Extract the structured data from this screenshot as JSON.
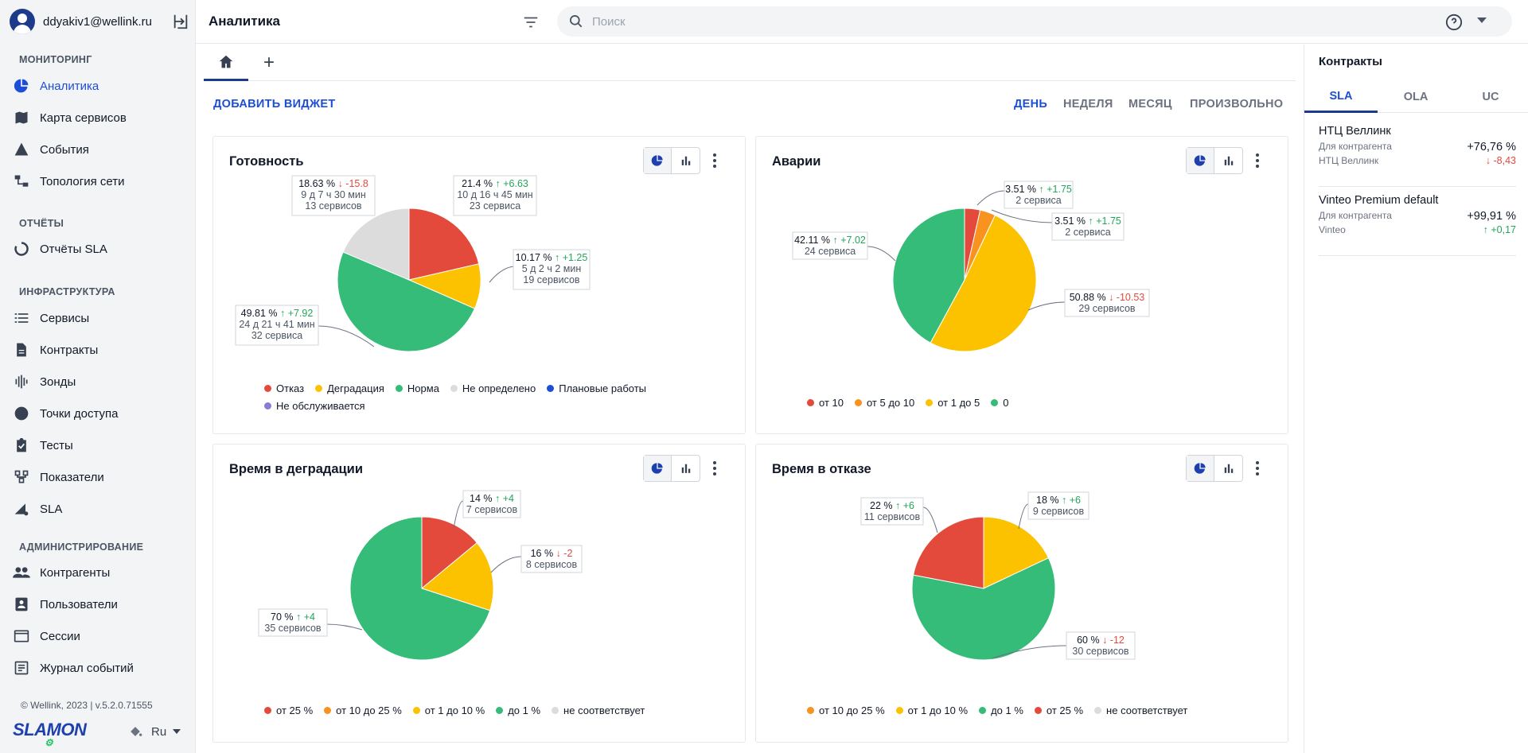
{
  "user": {
    "email": "ddyakiv1@wellink.ru"
  },
  "sidebar": {
    "sections": [
      {
        "title": "МОНИТОРИНГ",
        "items": [
          {
            "label": "Аналитика",
            "icon": "analytics-pie-icon",
            "active": true
          },
          {
            "label": "Карта сервисов",
            "icon": "map-icon"
          },
          {
            "label": "События",
            "icon": "warning-icon"
          },
          {
            "label": "Топология сети",
            "icon": "topology-icon"
          }
        ]
      },
      {
        "title": "ОТЧЁТЫ",
        "items": [
          {
            "label": "Отчёты SLA",
            "icon": "sla-report-icon"
          }
        ]
      },
      {
        "title": "ИНФРАСТРУКТУРА",
        "items": [
          {
            "label": "Сервисы",
            "icon": "list-icon"
          },
          {
            "label": "Контракты",
            "icon": "document-icon"
          },
          {
            "label": "Зонды",
            "icon": "probe-icon"
          },
          {
            "label": "Точки доступа",
            "icon": "circle-icon"
          },
          {
            "label": "Тесты",
            "icon": "clipboard-check-icon"
          },
          {
            "label": "Показатели",
            "icon": "metrics-icon"
          },
          {
            "label": "SLA",
            "icon": "sla-icon"
          }
        ]
      },
      {
        "title": "АДМИНИСТРИРОВАНИЕ",
        "items": [
          {
            "label": "Контрагенты",
            "icon": "people-icon"
          },
          {
            "label": "Пользователи",
            "icon": "user-card-icon"
          },
          {
            "label": "Сессии",
            "icon": "window-icon"
          },
          {
            "label": "Журнал событий",
            "icon": "log-icon"
          }
        ]
      }
    ],
    "footer": "© Wellink, 2023 | v.5.2.0.71555",
    "logo": "SLAMON",
    "language": "Ru"
  },
  "header": {
    "title": "Аналитика",
    "search_placeholder": "Поиск"
  },
  "toolbar": {
    "add_widget": "ДОБАВИТЬ ВИДЖЕТ",
    "periods": [
      {
        "label": "ДЕНЬ",
        "active": true
      },
      {
        "label": "НЕДЕЛЯ"
      },
      {
        "label": "МЕСЯЦ"
      },
      {
        "label": "ПРОИЗВОЛЬНО"
      }
    ]
  },
  "colors": {
    "red": "#e34a3b",
    "yellow": "#fcc200",
    "green": "#34bc78",
    "gray": "#dcdcdc",
    "orange": "#f7931e",
    "blue": "#1d4ed8",
    "purple": "#8c7bd6",
    "up_green": "#22a55a",
    "down_red": "#e34a3b"
  },
  "widgets": [
    {
      "title": "Готовность",
      "chart_data": {
        "type": "pie",
        "slices": [
          {
            "name": "Отказ",
            "value": 21.4,
            "color": "#e34a3b",
            "pct": "21.4 %",
            "delta": "+6.63",
            "dir": "up",
            "time": "10 д 16 ч 45 мин",
            "count": "23 сервиса"
          },
          {
            "name": "Деградация",
            "value": 10.17,
            "color": "#fcc200",
            "pct": "10.17 %",
            "delta": "+1.25",
            "dir": "up",
            "time": "5 д 2 ч 2 мин",
            "count": "19 сервисов"
          },
          {
            "name": "Норма",
            "value": 49.81,
            "color": "#34bc78",
            "pct": "49.81 %",
            "delta": "+7.92",
            "dir": "up",
            "time": "24 д 21 ч 41 мин",
            "count": "32 сервиса"
          },
          {
            "name": "Не определено",
            "value": 18.63,
            "color": "#dcdcdc",
            "pct": "18.63 %",
            "delta": "-15.8",
            "dir": "down",
            "time": "9 д 7 ч 30 мин",
            "count": "13 сервисов"
          }
        ],
        "legend": [
          {
            "name": "Отказ",
            "color": "#e34a3b"
          },
          {
            "name": "Деградация",
            "color": "#fcc200"
          },
          {
            "name": "Норма",
            "color": "#34bc78"
          },
          {
            "name": "Не определено",
            "color": "#dcdcdc"
          },
          {
            "name": "Плановые работы",
            "color": "#1d4ed8"
          },
          {
            "name": "Не обслуживается",
            "color": "#8c7bd6"
          }
        ]
      }
    },
    {
      "title": "Аварии",
      "chart_data": {
        "type": "pie",
        "slices": [
          {
            "name": "от 10",
            "value": 3.51,
            "color": "#e34a3b",
            "pct": "3.51 %",
            "delta": "+1.75",
            "dir": "up",
            "count": "2 сервиса"
          },
          {
            "name": "от 5 до 10",
            "value": 3.51,
            "color": "#f7931e",
            "pct": "3.51 %",
            "delta": "+1.75",
            "dir": "up",
            "count": "2 сервиса"
          },
          {
            "name": "от 1 до 5",
            "value": 50.88,
            "color": "#fcc200",
            "pct": "50.88 %",
            "delta": "-10.53",
            "dir": "down",
            "count": "29 сервисов"
          },
          {
            "name": "0",
            "value": 42.11,
            "color": "#34bc78",
            "pct": "42.11 %",
            "delta": "+7.02",
            "dir": "up",
            "count": "24 сервиса"
          }
        ],
        "legend": [
          {
            "name": "от 10",
            "color": "#e34a3b"
          },
          {
            "name": "от 5 до 10",
            "color": "#f7931e"
          },
          {
            "name": "от 1 до 5",
            "color": "#fcc200"
          },
          {
            "name": "0",
            "color": "#34bc78"
          }
        ]
      }
    },
    {
      "title": "Время в деградации",
      "chart_data": {
        "type": "pie",
        "slices": [
          {
            "name": "от 25 %",
            "value": 14,
            "color": "#e34a3b",
            "pct": "14 %",
            "delta": "+4",
            "dir": "up",
            "count": "7 сервисов"
          },
          {
            "name": "от 1 до 10 %",
            "value": 16,
            "color": "#fcc200",
            "pct": "16 %",
            "delta": "-2",
            "dir": "down",
            "count": "8 сервисов"
          },
          {
            "name": "до 1 %",
            "value": 70,
            "color": "#34bc78",
            "pct": "70 %",
            "delta": "+4",
            "dir": "up",
            "count": "35 сервисов"
          }
        ],
        "legend": [
          {
            "name": "от 25 %",
            "color": "#e34a3b"
          },
          {
            "name": "от 10 до 25 %",
            "color": "#f7931e"
          },
          {
            "name": "от 1 до 10 %",
            "color": "#fcc200"
          },
          {
            "name": "до 1 %",
            "color": "#34bc78"
          },
          {
            "name": "не соответствует",
            "color": "#dcdcdc"
          }
        ]
      }
    },
    {
      "title": "Время в отказе",
      "chart_data": {
        "type": "pie",
        "slices": [
          {
            "name": "от 1 до 10 %",
            "value": 18,
            "color": "#fcc200",
            "pct": "18 %",
            "delta": "+6",
            "dir": "up",
            "count": "9 сервисов"
          },
          {
            "name": "до 1 %",
            "value": 60,
            "color": "#34bc78",
            "pct": "60 %",
            "delta": "-12",
            "dir": "down",
            "count": "30 сервисов"
          },
          {
            "name": "от 25 %",
            "value": 22,
            "color": "#e34a3b",
            "pct": "22 %",
            "delta": "+6",
            "dir": "up",
            "count": "11 сервисов"
          }
        ],
        "legend": [
          {
            "name": "от 10 до 25 %",
            "color": "#f7931e"
          },
          {
            "name": "от 1 до 10 %",
            "color": "#fcc200"
          },
          {
            "name": "до 1 %",
            "color": "#34bc78"
          },
          {
            "name": "от 25 %",
            "color": "#e34a3b"
          },
          {
            "name": "не соответствует",
            "color": "#dcdcdc"
          }
        ]
      }
    }
  ],
  "right_panel": {
    "title": "Контракты",
    "tabs": [
      {
        "label": "SLA",
        "active": true
      },
      {
        "label": "OLA"
      },
      {
        "label": "UC"
      }
    ],
    "contracts": [
      {
        "name": "НТЦ Веллинк",
        "sub": "Для контрагента",
        "counterparty": "НТЦ Веллинк",
        "value": "+76,76 %",
        "delta": "-8,43",
        "dir": "down"
      },
      {
        "name": "Vinteo Premium default",
        "sub": "Для контрагента",
        "counterparty": "Vinteo",
        "value": "+99,91 %",
        "delta": "+0,17",
        "dir": "up"
      }
    ]
  }
}
